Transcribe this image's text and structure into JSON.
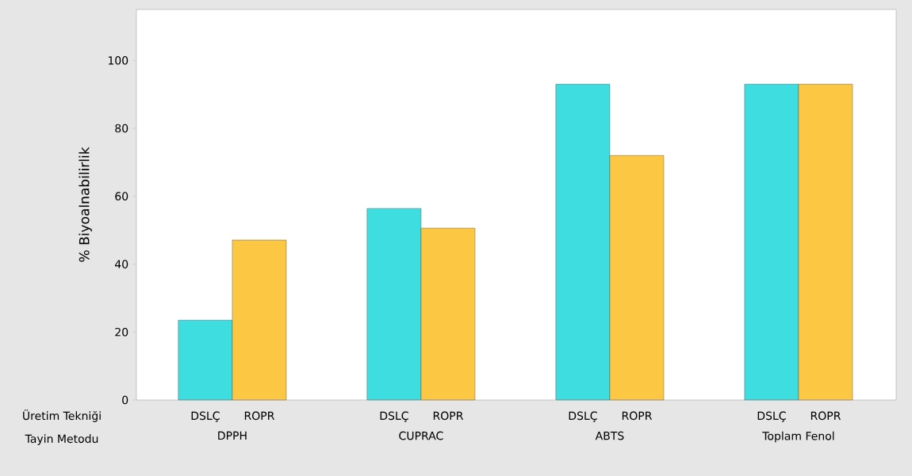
{
  "chart_data": {
    "type": "bar",
    "ylabel": "% Biyoalnabilirlik",
    "categories": [
      "DPPH",
      "CUPRAC",
      "ABTS",
      "Toplam Fenol"
    ],
    "series": [
      {
        "name": "DSLÇ",
        "color": "#3ddde0",
        "values": [
          23.5,
          56.4,
          93.0,
          93.0
        ]
      },
      {
        "name": "ROPR",
        "color": "#fcc844",
        "values": [
          47.1,
          50.6,
          72.0,
          93.0
        ]
      }
    ],
    "ylim": [
      0,
      115
    ],
    "yticks": [
      0,
      20,
      40,
      60,
      80,
      100
    ],
    "annotations": [
      "Üretim Tekniği",
      "Tayin Metodu"
    ],
    "grid": false
  }
}
